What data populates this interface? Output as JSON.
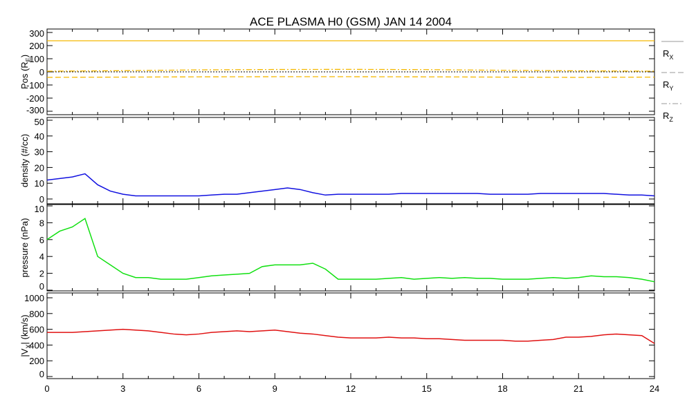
{
  "chart_data": [
    {
      "type": "line",
      "title": "ACE PLASMA H0 (GSM)   JAN 14 2004",
      "xlabel": "",
      "xlim": [
        0,
        24
      ],
      "xticks": [
        0,
        3,
        6,
        9,
        12,
        15,
        18,
        21,
        24
      ],
      "ylabel": "Pos (R_E)",
      "ylabel_main": "Pos (R",
      "ylabel_sub": "E",
      "ylabel_end": ")",
      "ylim": [
        -300,
        300
      ],
      "yticks": [
        300,
        200,
        100,
        0,
        -100,
        -200,
        -300
      ],
      "zero_line": true,
      "legend_placement": "right",
      "x": [
        0,
        3,
        6,
        9,
        12,
        15,
        18,
        21,
        24
      ],
      "series": [
        {
          "name": "R_X",
          "label_main": "R",
          "label_sub": "X",
          "style": "solid",
          "color": "#f5b800",
          "values": [
            237,
            237,
            237,
            237,
            237,
            237,
            237,
            237,
            237
          ]
        },
        {
          "name": "R_Y",
          "label_main": "R",
          "label_sub": "Y",
          "style": "dash",
          "color": "#f5b800",
          "values": [
            -42,
            -40,
            -38,
            -37,
            -37,
            -38,
            -40,
            -42,
            -40
          ]
        },
        {
          "name": "R_Z",
          "label_main": "R",
          "label_sub": "Z",
          "style": "dashdot",
          "color": "#f5b800",
          "values": [
            5,
            9,
            15,
            18,
            19,
            17,
            12,
            8,
            5
          ]
        }
      ]
    },
    {
      "type": "line",
      "ylabel": "density (#/cc)",
      "xlim": [
        0,
        24
      ],
      "ylim": [
        0,
        50
      ],
      "yticks": [
        50,
        40,
        30,
        20,
        10,
        0
      ],
      "color": "#1010e0",
      "x_step": 0.5,
      "values": [
        12,
        13,
        14,
        16,
        9,
        5,
        3,
        2,
        2,
        2,
        2,
        2,
        2,
        2.5,
        3,
        3,
        4,
        5,
        6,
        7,
        6,
        4,
        2.5,
        3,
        3,
        3,
        3,
        3,
        3.5,
        3.5,
        3.5,
        3.5,
        3.5,
        3.5,
        3.5,
        3,
        3,
        3,
        3,
        3.5,
        3.5,
        3.5,
        3.5,
        3.5,
        3.5,
        3,
        2.5,
        2.5,
        2
      ]
    },
    {
      "type": "line",
      "ylabel": "pressure (nPa)",
      "xlim": [
        0,
        24
      ],
      "ylim": [
        0,
        10
      ],
      "yticks": [
        10,
        8,
        6,
        4,
        2,
        0
      ],
      "color": "#10e010",
      "x_step": 0.5,
      "values": [
        6,
        7,
        7.5,
        8.5,
        4,
        3,
        2,
        1.5,
        1.5,
        1.3,
        1.3,
        1.3,
        1.5,
        1.7,
        1.8,
        1.9,
        2,
        2.8,
        3,
        3,
        3,
        3.2,
        2.5,
        1.3,
        1.3,
        1.3,
        1.3,
        1.4,
        1.5,
        1.3,
        1.4,
        1.5,
        1.4,
        1.5,
        1.4,
        1.4,
        1.3,
        1.3,
        1.3,
        1.4,
        1.5,
        1.4,
        1.5,
        1.7,
        1.6,
        1.6,
        1.5,
        1.3,
        1.0
      ]
    },
    {
      "type": "line",
      "ylabel": "|V_X| (km/s)",
      "ylabel_main": "|V",
      "ylabel_sub": "X",
      "ylabel_end": "| (km/s)",
      "xlim": [
        0,
        24
      ],
      "ylim": [
        0,
        1000
      ],
      "yticks": [
        1000,
        800,
        600,
        400,
        200,
        0
      ],
      "color": "#e01010",
      "x_step": 0.5,
      "values": [
        560,
        560,
        560,
        570,
        580,
        590,
        600,
        590,
        580,
        560,
        540,
        530,
        540,
        560,
        570,
        580,
        570,
        580,
        590,
        570,
        550,
        540,
        520,
        500,
        490,
        490,
        490,
        500,
        490,
        490,
        480,
        480,
        470,
        460,
        460,
        460,
        460,
        450,
        450,
        460,
        470,
        500,
        500,
        510,
        530,
        540,
        530,
        520,
        420
      ]
    }
  ]
}
